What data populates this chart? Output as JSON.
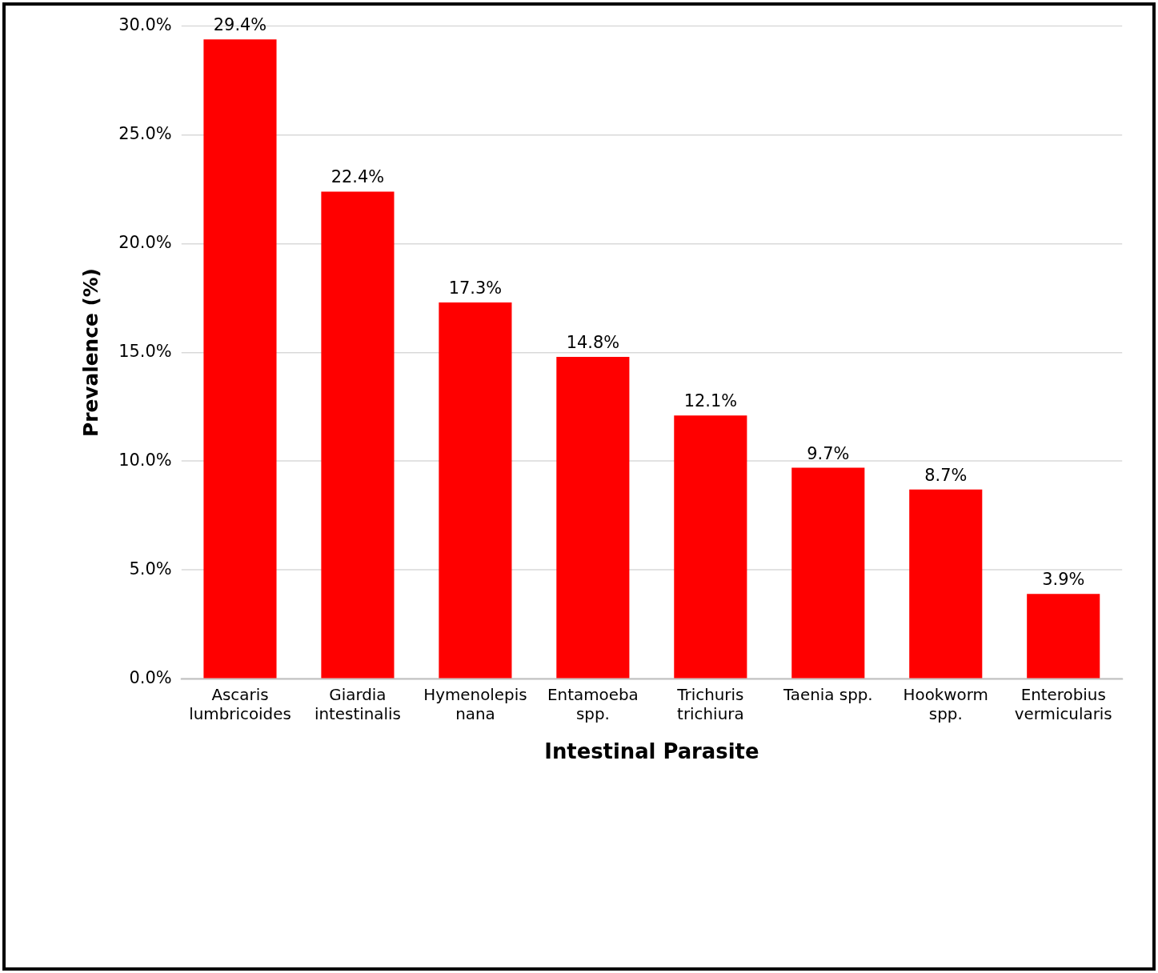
{
  "chart_data": {
    "type": "bar",
    "xlabel": "Intestinal Parasite",
    "ylabel": "Prevalence (%)",
    "categories": [
      "Ascaris lumbricoides",
      "Giardia intestinalis",
      "Hymenolepis nana",
      "Entamoeba spp.",
      "Trichuris trichiura",
      "Taenia spp.",
      "Hookworm spp.",
      "Enterobius vermicularis"
    ],
    "values": [
      29.4,
      22.4,
      17.3,
      14.8,
      12.1,
      9.7,
      8.7,
      3.9
    ],
    "value_labels": [
      "29.4%",
      "22.4%",
      "17.3%",
      "14.8%",
      "12.1%",
      "9.7%",
      "8.7%",
      "3.9%"
    ],
    "color": "#ff0000",
    "ylim": [
      0,
      30
    ],
    "yticks": [
      {
        "value": 0,
        "label": "0.0%"
      },
      {
        "value": 5,
        "label": "5.0%"
      },
      {
        "value": 10,
        "label": "10.0%"
      },
      {
        "value": 15,
        "label": "15.0%"
      },
      {
        "value": 20,
        "label": "20.0%"
      },
      {
        "value": 25,
        "label": "25.0%"
      },
      {
        "value": 30,
        "label": "30.0%"
      }
    ],
    "grid": "y",
    "legend": false
  }
}
